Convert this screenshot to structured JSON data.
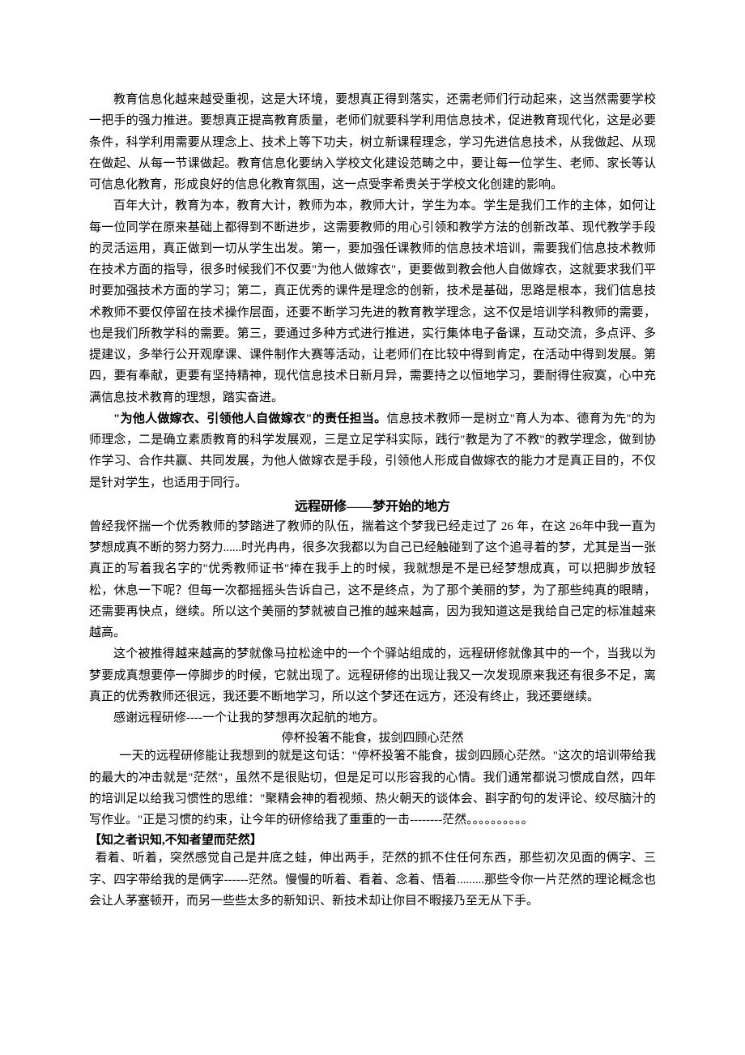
{
  "p1": "教育信息化越来越受重视，这是大环境，要想真正得到落实，还需老师们行动起来，这当然需要学校一把手的强力推进。要想真正提高教育质量，老师们就要科学利用信息技术，促进教育现代化，这是必要条件，科学利用需要从理念上、技术上等下功夫，树立新课程理念，学习先进信息技术，从我做起、从现在做起、从每一节课做起。教育信息化要纳入学校文化建设范畴之中，要让每一位学生、老师、家长等认可信息化教育，形成良好的信息化教育氛围，这一点受李希贵关于学校文化创建的影响。",
  "p2": "百年大计，教育为本，教育大计，教师为本，教师大计，学生为本。学生是我们工作的主体，如何让每一位同学在原来基础上都得到不断进步，这需要教师的用心引领和教学方法的创新改革、现代教学手段的灵活运用，真正做到一切从学生出发。第一，要加强任课教师的信息技术培训，需要我们信息技术教师在技术方面的指导，很多时候我们不仅要\"为他人做嫁衣\"，更要做到教会他人自做嫁衣，这就要求我们平时要加强技术方面的学习；第二，真正优秀的课件是理念的创新，技术是基础，思路是根本，我们信息技术教师不要仅停留在技术操作层面，还要不断学习先进的教育教学理念，这不仅是培训学科教师的需要，也是我们所教学科的需要。第三，要通过多种方式进行推进，实行集体电子备课，互动交流，多点评、多提建议，多举行公开观摩课、课件制作大赛等活动，让老师们在比较中得到肯定，在活动中得到发展。第四，要有奉献，更要有坚持精神，现代信息技术日新月异，需要持之以恒地学习，要耐得住寂寞，心中充满信息技术教育的理想，踏实奋进。",
  "p3_bold": "\"为他人做嫁衣、引领他人自做嫁衣\"的责任担当。",
  "p3_rest": "信息技术教师一是树立\"育人为本、德育为先\"的为师理念，二是确立素质教育的科学发展观，三是立足学科实际，践行\"教是为了不教\"的教学理念，做到协作学习、合作共赢、共同发展，为他人做嫁衣是手段，引领他人形成自做嫁衣的能力才是真正目的，不仅是针对学生，也适用于同行。",
  "title1": "远程研修——梦开始的地方",
  "p4": "曾经我怀揣一个优秀教师的梦踏进了教师的队伍，揣着这个梦我已经走过了 26 年，在这 26年中我一直为梦想成真不断的努力努力......时光冉冉，很多次我都以为自己已经触碰到了这个追寻着的梦，尤其是当一张真正的写着我名字的\"优秀教师证书\"捧在我手上的时候，我就想是不是已经梦想成真，可以把脚步放轻松，休息一下呢？但每一次都摇摇头告诉自己，这不是终点，为了那个美丽的梦，为了那些纯真的眼睛，还需要再快点，继续。所以这个美丽的梦就被自己推的越来越高，因为我知道这是我给自己定的标准越来越高。",
  "p5": "这个被推得越来越高的梦就像马拉松途中的一个个驿站组成的，远程研修就像其中的一个，当我以为梦要成真想要停一停脚步的时候，它就出现了。远程研修的出现让我又一次发现原来我还有很多不足，离真正的优秀教师还很远，我还要不断地学习，所以这个梦还在远方，还没有终止，我还要继续。",
  "p6": "感谢远程研修----一个让我的梦想再次起航的地方。",
  "subtitle1": "停杯投箸不能食，拔剑四顾心茫然",
  "p7": "一天的远程研修能让我想到的就是这句话：\"停杯投箸不能食，拔剑四顾心茫然。\"这次的培训带给我的最大的冲击就是\"茫然\"，虽然不是很贴切，但是足可以形容我的心情。我们通常都说习惯成自然，四年的培训足以给我习惯性的思维：\"聚精会神的看视频、热火朝天的谈体会、斟字酌句的发评论、绞尽脑汁的写作业。\"正是习惯的约束，让今年的研修给我了重重的一击--------茫然。。。。。。。。。。",
  "section_head": "【知之者识知,不知者望而茫然】",
  "p8": "看着、听着，突然感觉自己是井底之蛙，伸出两手，茫然的抓不住任何东西，那些初次见面的俩字、三字、四字带给我的是俩字------茫然。慢慢的听着、看着、念着、悟着.........那些令你一片茫然的理论概念也会让人茅塞顿开，而另一些些太多的新知识、新技术却让你目不暇接乃至无从下手。"
}
